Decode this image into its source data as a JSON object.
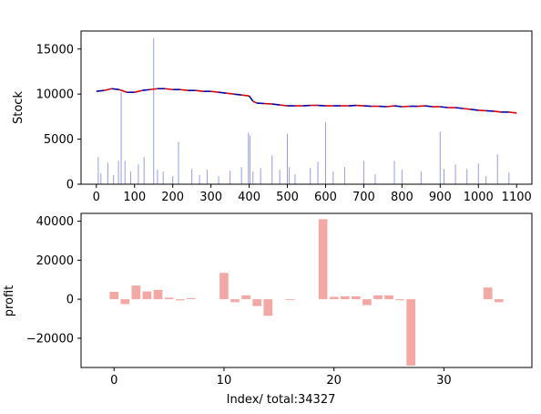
{
  "chart_data": [
    {
      "type": "line",
      "ylabel": "Stock",
      "xlabel": "",
      "xlim": [
        -40,
        1140
      ],
      "ylim": [
        0,
        17000
      ],
      "x_ticks": [
        0,
        100,
        200,
        300,
        400,
        500,
        600,
        700,
        800,
        900,
        1000,
        1100
      ],
      "y_ticks": [
        0,
        5000,
        10000,
        15000
      ],
      "price_series": {
        "x": [
          0,
          20,
          40,
          60,
          80,
          100,
          120,
          140,
          160,
          180,
          200,
          220,
          240,
          260,
          280,
          300,
          320,
          340,
          360,
          380,
          400,
          410,
          420,
          440,
          460,
          480,
          500,
          520,
          540,
          560,
          580,
          600,
          620,
          640,
          660,
          680,
          700,
          720,
          740,
          760,
          780,
          800,
          820,
          840,
          860,
          880,
          900,
          920,
          940,
          960,
          980,
          1000,
          1020,
          1040,
          1060,
          1080,
          1100
        ],
        "y": [
          10300,
          10400,
          10600,
          10500,
          10200,
          10200,
          10400,
          10500,
          10600,
          10600,
          10500,
          10500,
          10400,
          10400,
          10300,
          10300,
          10200,
          10100,
          10000,
          9900,
          9800,
          9200,
          9000,
          8950,
          8900,
          8800,
          8700,
          8700,
          8700,
          8750,
          8750,
          8700,
          8700,
          8700,
          8700,
          8750,
          8700,
          8650,
          8650,
          8600,
          8700,
          8600,
          8650,
          8650,
          8700,
          8600,
          8600,
          8500,
          8500,
          8400,
          8300,
          8200,
          8150,
          8100,
          8000,
          8000,
          7900
        ],
        "colors": [
          "#0000aa",
          "#dd0000"
        ]
      },
      "volume_series": {
        "x": [
          5,
          12,
          30,
          45,
          58,
          65,
          75,
          90,
          110,
          125,
          150,
          160,
          175,
          200,
          215,
          250,
          270,
          290,
          320,
          350,
          380,
          398,
          402,
          410,
          430,
          460,
          480,
          500,
          505,
          520,
          560,
          580,
          600,
          620,
          650,
          700,
          730,
          780,
          800,
          850,
          900,
          910,
          940,
          970,
          1000,
          1020,
          1050,
          1080
        ],
        "y": [
          3000,
          1200,
          2400,
          1000,
          2600,
          10200,
          2600,
          1400,
          2200,
          3000,
          16200,
          1600,
          1400,
          900,
          4700,
          1700,
          1000,
          1600,
          900,
          1500,
          1900,
          5700,
          5400,
          1400,
          1800,
          3200,
          1600,
          5600,
          1900,
          1100,
          1800,
          2500,
          6900,
          1400,
          1900,
          2600,
          1100,
          2600,
          1600,
          1400,
          5800,
          1700,
          2200,
          1700,
          2300,
          900,
          3300,
          1300
        ],
        "color": "#9999ee"
      }
    },
    {
      "type": "bar",
      "xlabel": "Index/ total:34327",
      "ylabel": "profit",
      "xlim": [
        -3,
        38
      ],
      "ylim": [
        -35000,
        44000
      ],
      "x_ticks": [
        0,
        10,
        20,
        30
      ],
      "y_ticks": [
        -20000,
        0,
        20000,
        40000
      ],
      "categories": [
        0,
        1,
        2,
        3,
        4,
        5,
        6,
        7,
        8,
        9,
        10,
        11,
        12,
        13,
        14,
        15,
        16,
        17,
        18,
        19,
        20,
        21,
        22,
        23,
        24,
        25,
        26,
        27,
        28,
        29,
        30,
        31,
        32,
        33,
        34,
        35,
        36,
        37
      ],
      "values": [
        3800,
        -2500,
        7000,
        4000,
        4800,
        800,
        -600,
        500,
        0,
        0,
        13500,
        -1500,
        2000,
        -3500,
        -8500,
        0,
        -400,
        0,
        0,
        41000,
        1200,
        1500,
        1500,
        -3000,
        2000,
        2000,
        -500,
        -34000,
        0,
        0,
        0,
        0,
        0,
        0,
        6000,
        -1500,
        0,
        0
      ],
      "bar_color": "#f4a7a3"
    }
  ]
}
